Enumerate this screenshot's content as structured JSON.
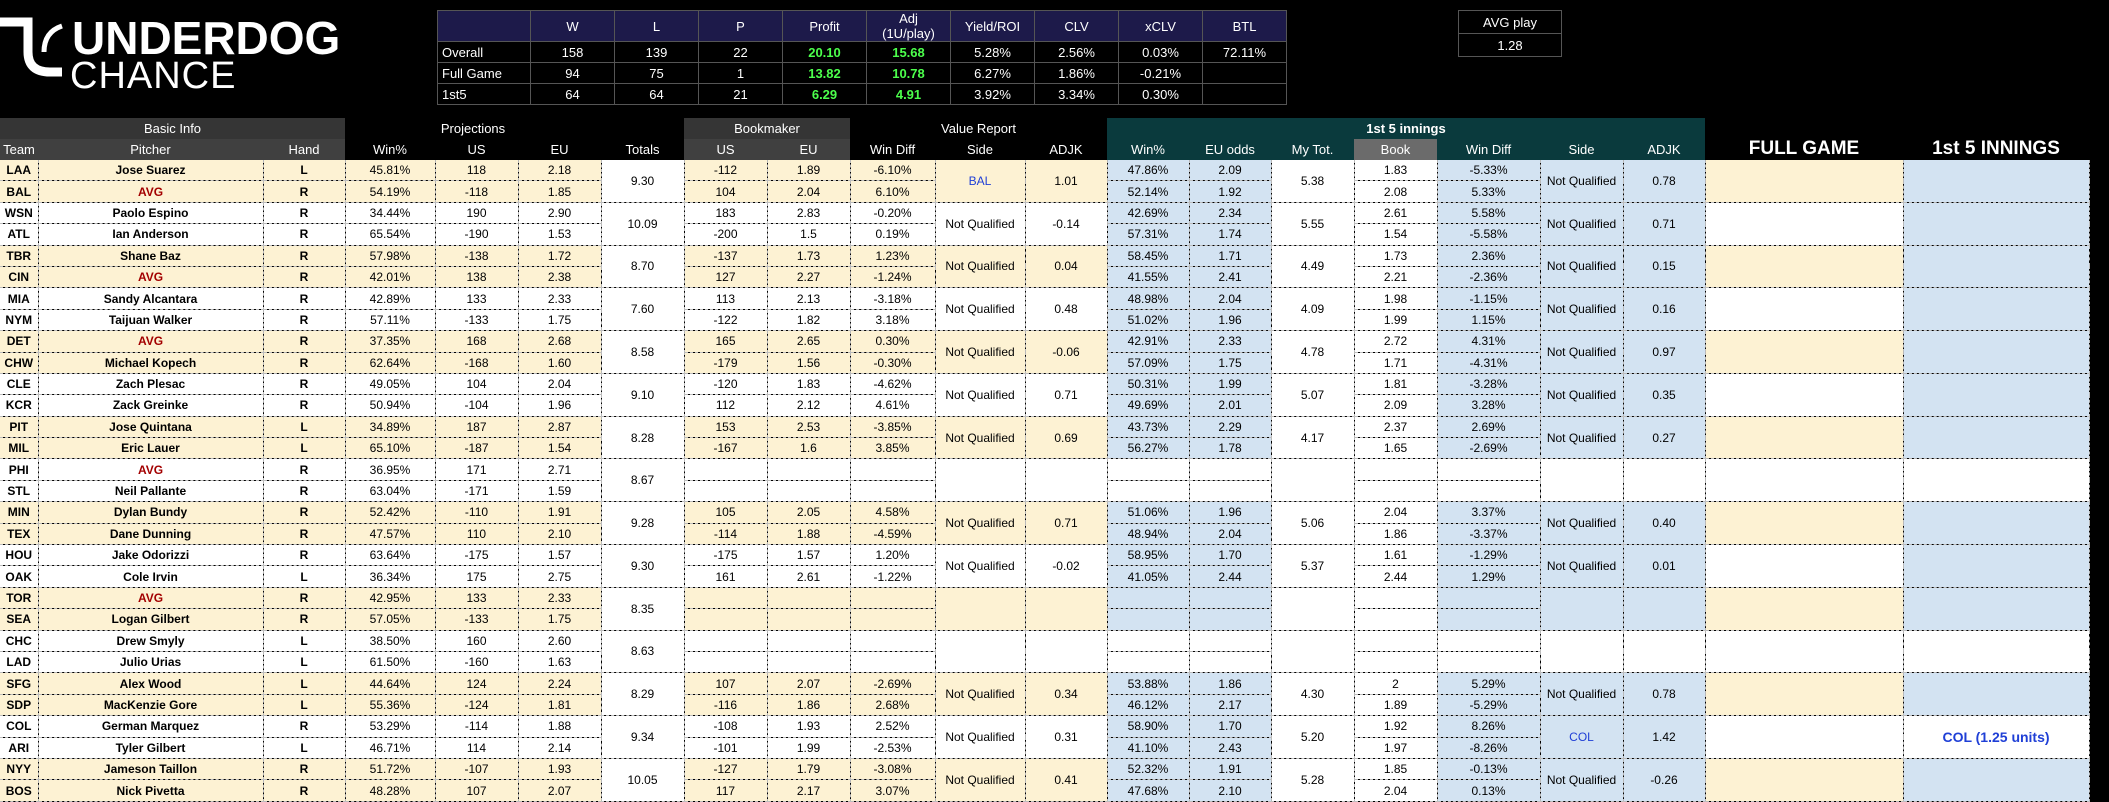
{
  "logo": {
    "text_top": "UNDERDOG",
    "text_bottom": "CHANCE"
  },
  "summary": {
    "headers": [
      "",
      "W",
      "L",
      "P",
      "Profit",
      "Adj (1U/play)",
      "Yield/ROI",
      "CLV",
      "xCLV",
      "BTL"
    ],
    "rows": [
      [
        "Overall",
        "158",
        "139",
        "22",
        "20.10",
        "15.68",
        "5.28%",
        "2.56%",
        "0.03%",
        "72.11%"
      ],
      [
        "Full Game",
        "94",
        "75",
        "1",
        "13.82",
        "10.78",
        "6.27%",
        "1.86%",
        "-0.21%",
        ""
      ],
      [
        "1st5",
        "64",
        "64",
        "21",
        "6.29",
        "4.91",
        "3.92%",
        "3.34%",
        "0.30%",
        ""
      ]
    ]
  },
  "avg_play": {
    "label": "AVG play",
    "value": "1.28"
  },
  "main": {
    "groups": {
      "basic": "Basic Info",
      "proj": "Projections",
      "book": "Bookmaker",
      "value": "Value Report",
      "f5": "1st 5 innings",
      "full": "FULL GAME",
      "first5": "1st 5 INNINGS"
    },
    "headers": [
      "Team",
      "Pitcher",
      "Hand",
      "Win%",
      "US",
      "EU",
      "Totals",
      "US",
      "EU",
      "Win Diff",
      "Side",
      "ADJK",
      "Win%",
      "EU odds",
      "My Tot.",
      "Book",
      "Win Diff",
      "Side",
      "ADJK"
    ],
    "games": [
      {
        "t": [
          {
            "team": "LAA",
            "pitcher": "Jose Suarez",
            "hand": "L",
            "win": "45.81%",
            "us": "118",
            "eu": "2.18",
            "bus": "-112",
            "beu": "1.89",
            "wd": "-6.10%",
            "fwin": "47.86%",
            "feu": "2.09",
            "fbook": "1.83",
            "fwd": "-5.33%"
          },
          {
            "team": "BAL",
            "pitcher": "AVG",
            "hand": "R",
            "win": "54.19%",
            "us": "-118",
            "eu": "1.85",
            "bus": "104",
            "beu": "2.04",
            "wd": "6.10%",
            "fwin": "52.14%",
            "feu": "1.92",
            "fbook": "2.08",
            "fwd": "5.33%"
          }
        ],
        "totals": "9.30",
        "side": "BAL",
        "adjk": "1.01",
        "ftot": "5.38",
        "fside": "Not Qualified",
        "fadjk": "0.78",
        "full": "",
        "first5": ""
      },
      {
        "t": [
          {
            "team": "WSN",
            "pitcher": "Paolo Espino",
            "hand": "R",
            "win": "34.44%",
            "us": "190",
            "eu": "2.90",
            "bus": "183",
            "beu": "2.83",
            "wd": "-0.20%",
            "fwin": "42.69%",
            "feu": "2.34",
            "fbook": "2.61",
            "fwd": "5.58%"
          },
          {
            "team": "ATL",
            "pitcher": "Ian Anderson",
            "hand": "R",
            "win": "65.54%",
            "us": "-190",
            "eu": "1.53",
            "bus": "-200",
            "beu": "1.5",
            "wd": "0.19%",
            "fwin": "57.31%",
            "feu": "1.74",
            "fbook": "1.54",
            "fwd": "-5.58%"
          }
        ],
        "totals": "10.09",
        "side": "Not Qualified",
        "adjk": "-0.14",
        "ftot": "5.55",
        "fside": "Not Qualified",
        "fadjk": "0.71",
        "full": "",
        "first5": ""
      },
      {
        "t": [
          {
            "team": "TBR",
            "pitcher": "Shane Baz",
            "hand": "R",
            "win": "57.98%",
            "us": "-138",
            "eu": "1.72",
            "bus": "-137",
            "beu": "1.73",
            "wd": "1.23%",
            "fwin": "58.45%",
            "feu": "1.71",
            "fbook": "1.73",
            "fwd": "2.36%"
          },
          {
            "team": "CIN",
            "pitcher": "AVG",
            "hand": "R",
            "win": "42.01%",
            "us": "138",
            "eu": "2.38",
            "bus": "127",
            "beu": "2.27",
            "wd": "-1.24%",
            "fwin": "41.55%",
            "feu": "2.41",
            "fbook": "2.21",
            "fwd": "-2.36%"
          }
        ],
        "totals": "8.70",
        "side": "Not Qualified",
        "adjk": "0.04",
        "ftot": "4.49",
        "fside": "Not Qualified",
        "fadjk": "0.15",
        "full": "",
        "first5": ""
      },
      {
        "t": [
          {
            "team": "MIA",
            "pitcher": "Sandy Alcantara",
            "hand": "R",
            "win": "42.89%",
            "us": "133",
            "eu": "2.33",
            "bus": "113",
            "beu": "2.13",
            "wd": "-3.18%",
            "fwin": "48.98%",
            "feu": "2.04",
            "fbook": "1.98",
            "fwd": "-1.15%"
          },
          {
            "team": "NYM",
            "pitcher": "Taijuan Walker",
            "hand": "R",
            "win": "57.11%",
            "us": "-133",
            "eu": "1.75",
            "bus": "-122",
            "beu": "1.82",
            "wd": "3.18%",
            "fwin": "51.02%",
            "feu": "1.96",
            "fbook": "1.99",
            "fwd": "1.15%"
          }
        ],
        "totals": "7.60",
        "side": "Not Qualified",
        "adjk": "0.48",
        "ftot": "4.09",
        "fside": "Not Qualified",
        "fadjk": "0.16",
        "full": "",
        "first5": ""
      },
      {
        "t": [
          {
            "team": "DET",
            "pitcher": "AVG",
            "hand": "R",
            "win": "37.35%",
            "us": "168",
            "eu": "2.68",
            "bus": "165",
            "beu": "2.65",
            "wd": "0.30%",
            "fwin": "42.91%",
            "feu": "2.33",
            "fbook": "2.72",
            "fwd": "4.31%"
          },
          {
            "team": "CHW",
            "pitcher": "Michael Kopech",
            "hand": "R",
            "win": "62.64%",
            "us": "-168",
            "eu": "1.60",
            "bus": "-179",
            "beu": "1.56",
            "wd": "-0.30%",
            "fwin": "57.09%",
            "feu": "1.75",
            "fbook": "1.71",
            "fwd": "-4.31%"
          }
        ],
        "totals": "8.58",
        "side": "Not Qualified",
        "adjk": "-0.06",
        "ftot": "4.78",
        "fside": "Not Qualified",
        "fadjk": "0.97",
        "full": "",
        "first5": ""
      },
      {
        "t": [
          {
            "team": "CLE",
            "pitcher": "Zach Plesac",
            "hand": "R",
            "win": "49.05%",
            "us": "104",
            "eu": "2.04",
            "bus": "-120",
            "beu": "1.83",
            "wd": "-4.62%",
            "fwin": "50.31%",
            "feu": "1.99",
            "fbook": "1.81",
            "fwd": "-3.28%"
          },
          {
            "team": "KCR",
            "pitcher": "Zack Greinke",
            "hand": "R",
            "win": "50.94%",
            "us": "-104",
            "eu": "1.96",
            "bus": "112",
            "beu": "2.12",
            "wd": "4.61%",
            "fwin": "49.69%",
            "feu": "2.01",
            "fbook": "2.09",
            "fwd": "3.28%"
          }
        ],
        "totals": "9.10",
        "side": "Not Qualified",
        "adjk": "0.71",
        "ftot": "5.07",
        "fside": "Not Qualified",
        "fadjk": "0.35",
        "full": "",
        "first5": ""
      },
      {
        "t": [
          {
            "team": "PIT",
            "pitcher": "Jose Quintana",
            "hand": "L",
            "win": "34.89%",
            "us": "187",
            "eu": "2.87",
            "bus": "153",
            "beu": "2.53",
            "wd": "-3.85%",
            "fwin": "43.73%",
            "feu": "2.29",
            "fbook": "2.37",
            "fwd": "2.69%"
          },
          {
            "team": "MIL",
            "pitcher": "Eric Lauer",
            "hand": "L",
            "win": "65.10%",
            "us": "-187",
            "eu": "1.54",
            "bus": "-167",
            "beu": "1.6",
            "wd": "3.85%",
            "fwin": "56.27%",
            "feu": "1.78",
            "fbook": "1.65",
            "fwd": "-2.69%"
          }
        ],
        "totals": "8.28",
        "side": "Not Qualified",
        "adjk": "0.69",
        "ftot": "4.17",
        "fside": "Not Qualified",
        "fadjk": "0.27",
        "full": "",
        "first5": ""
      },
      {
        "t": [
          {
            "team": "PHI",
            "pitcher": "AVG",
            "hand": "R",
            "win": "36.95%",
            "us": "171",
            "eu": "2.71",
            "bus": "",
            "beu": "",
            "wd": "",
            "fwin": "",
            "feu": "",
            "fbook": "",
            "fwd": ""
          },
          {
            "team": "STL",
            "pitcher": "Neil Pallante",
            "hand": "R",
            "win": "63.04%",
            "us": "-171",
            "eu": "1.59",
            "bus": "",
            "beu": "",
            "wd": "",
            "fwin": "",
            "feu": "",
            "fbook": "",
            "fwd": ""
          }
        ],
        "totals": "8.67",
        "side": "",
        "adjk": "",
        "ftot": "",
        "fside": "",
        "fadjk": "",
        "full": "",
        "first5": ""
      },
      {
        "t": [
          {
            "team": "MIN",
            "pitcher": "Dylan Bundy",
            "hand": "R",
            "win": "52.42%",
            "us": "-110",
            "eu": "1.91",
            "bus": "105",
            "beu": "2.05",
            "wd": "4.58%",
            "fwin": "51.06%",
            "feu": "1.96",
            "fbook": "2.04",
            "fwd": "3.37%"
          },
          {
            "team": "TEX",
            "pitcher": "Dane Dunning",
            "hand": "R",
            "win": "47.57%",
            "us": "110",
            "eu": "2.10",
            "bus": "-114",
            "beu": "1.88",
            "wd": "-4.59%",
            "fwin": "48.94%",
            "feu": "2.04",
            "fbook": "1.86",
            "fwd": "-3.37%"
          }
        ],
        "totals": "9.28",
        "side": "Not Qualified",
        "adjk": "0.71",
        "ftot": "5.06",
        "fside": "Not Qualified",
        "fadjk": "0.40",
        "full": "",
        "first5": ""
      },
      {
        "t": [
          {
            "team": "HOU",
            "pitcher": "Jake Odorizzi",
            "hand": "R",
            "win": "63.64%",
            "us": "-175",
            "eu": "1.57",
            "bus": "-175",
            "beu": "1.57",
            "wd": "1.20%",
            "fwin": "58.95%",
            "feu": "1.70",
            "fbook": "1.61",
            "fwd": "-1.29%"
          },
          {
            "team": "OAK",
            "pitcher": "Cole Irvin",
            "hand": "L",
            "win": "36.34%",
            "us": "175",
            "eu": "2.75",
            "bus": "161",
            "beu": "2.61",
            "wd": "-1.22%",
            "fwin": "41.05%",
            "feu": "2.44",
            "fbook": "2.44",
            "fwd": "1.29%"
          }
        ],
        "totals": "9.30",
        "side": "Not Qualified",
        "adjk": "-0.02",
        "ftot": "5.37",
        "fside": "Not Qualified",
        "fadjk": "0.01",
        "full": "",
        "first5": ""
      },
      {
        "t": [
          {
            "team": "TOR",
            "pitcher": "AVG",
            "hand": "R",
            "win": "42.95%",
            "us": "133",
            "eu": "2.33",
            "bus": "",
            "beu": "",
            "wd": "",
            "fwin": "",
            "feu": "",
            "fbook": "",
            "fwd": ""
          },
          {
            "team": "SEA",
            "pitcher": "Logan Gilbert",
            "hand": "R",
            "win": "57.05%",
            "us": "-133",
            "eu": "1.75",
            "bus": "",
            "beu": "",
            "wd": "",
            "fwin": "",
            "feu": "",
            "fbook": "",
            "fwd": ""
          }
        ],
        "totals": "8.35",
        "side": "",
        "adjk": "",
        "ftot": "",
        "fside": "",
        "fadjk": "",
        "full": "",
        "first5": ""
      },
      {
        "t": [
          {
            "team": "CHC",
            "pitcher": "Drew Smyly",
            "hand": "L",
            "win": "38.50%",
            "us": "160",
            "eu": "2.60",
            "bus": "",
            "beu": "",
            "wd": "",
            "fwin": "",
            "feu": "",
            "fbook": "",
            "fwd": ""
          },
          {
            "team": "LAD",
            "pitcher": "Julio Urias",
            "hand": "L",
            "win": "61.50%",
            "us": "-160",
            "eu": "1.63",
            "bus": "",
            "beu": "",
            "wd": "",
            "fwin": "",
            "feu": "",
            "fbook": "",
            "fwd": ""
          }
        ],
        "totals": "8.63",
        "side": "",
        "adjk": "",
        "ftot": "",
        "fside": "",
        "fadjk": "",
        "full": "",
        "first5": ""
      },
      {
        "t": [
          {
            "team": "SFG",
            "pitcher": "Alex Wood",
            "hand": "L",
            "win": "44.64%",
            "us": "124",
            "eu": "2.24",
            "bus": "107",
            "beu": "2.07",
            "wd": "-2.69%",
            "fwin": "53.88%",
            "feu": "1.86",
            "fbook": "2",
            "fwd": "5.29%"
          },
          {
            "team": "SDP",
            "pitcher": "MacKenzie Gore",
            "hand": "L",
            "win": "55.36%",
            "us": "-124",
            "eu": "1.81",
            "bus": "-116",
            "beu": "1.86",
            "wd": "2.68%",
            "fwin": "46.12%",
            "feu": "2.17",
            "fbook": "1.89",
            "fwd": "-5.29%"
          }
        ],
        "totals": "8.29",
        "side": "Not Qualified",
        "adjk": "0.34",
        "ftot": "4.30",
        "fside": "Not Qualified",
        "fadjk": "0.78",
        "full": "",
        "first5": ""
      },
      {
        "t": [
          {
            "team": "COL",
            "pitcher": "German Marquez",
            "hand": "R",
            "win": "53.29%",
            "us": "-114",
            "eu": "1.88",
            "bus": "-108",
            "beu": "1.93",
            "wd": "2.52%",
            "fwin": "58.90%",
            "feu": "1.70",
            "fbook": "1.92",
            "fwd": "8.26%"
          },
          {
            "team": "ARI",
            "pitcher": "Tyler Gilbert",
            "hand": "L",
            "win": "46.71%",
            "us": "114",
            "eu": "2.14",
            "bus": "-101",
            "beu": "1.99",
            "wd": "-2.53%",
            "fwin": "41.10%",
            "feu": "2.43",
            "fbook": "1.97",
            "fwd": "-8.26%"
          }
        ],
        "totals": "9.34",
        "side": "Not Qualified",
        "adjk": "0.31",
        "ftot": "5.20",
        "fside": "COL",
        "fadjk": "1.42",
        "full": "",
        "first5": "COL (1.25 units)"
      },
      {
        "t": [
          {
            "team": "NYY",
            "pitcher": "Jameson Taillon",
            "hand": "R",
            "win": "51.72%",
            "us": "-107",
            "eu": "1.93",
            "bus": "-127",
            "beu": "1.79",
            "wd": "-3.08%",
            "fwin": "52.32%",
            "feu": "1.91",
            "fbook": "1.85",
            "fwd": "-0.13%"
          },
          {
            "team": "BOS",
            "pitcher": "Nick Pivetta",
            "hand": "R",
            "win": "48.28%",
            "us": "107",
            "eu": "2.07",
            "bus": "117",
            "beu": "2.17",
            "wd": "3.07%",
            "fwin": "47.68%",
            "feu": "2.10",
            "fbook": "2.04",
            "fwd": "0.13%"
          }
        ],
        "totals": "10.05",
        "side": "Not Qualified",
        "adjk": "0.41",
        "ftot": "5.28",
        "fside": "Not Qualified",
        "fadjk": "-0.26",
        "full": "",
        "first5": ""
      }
    ]
  }
}
